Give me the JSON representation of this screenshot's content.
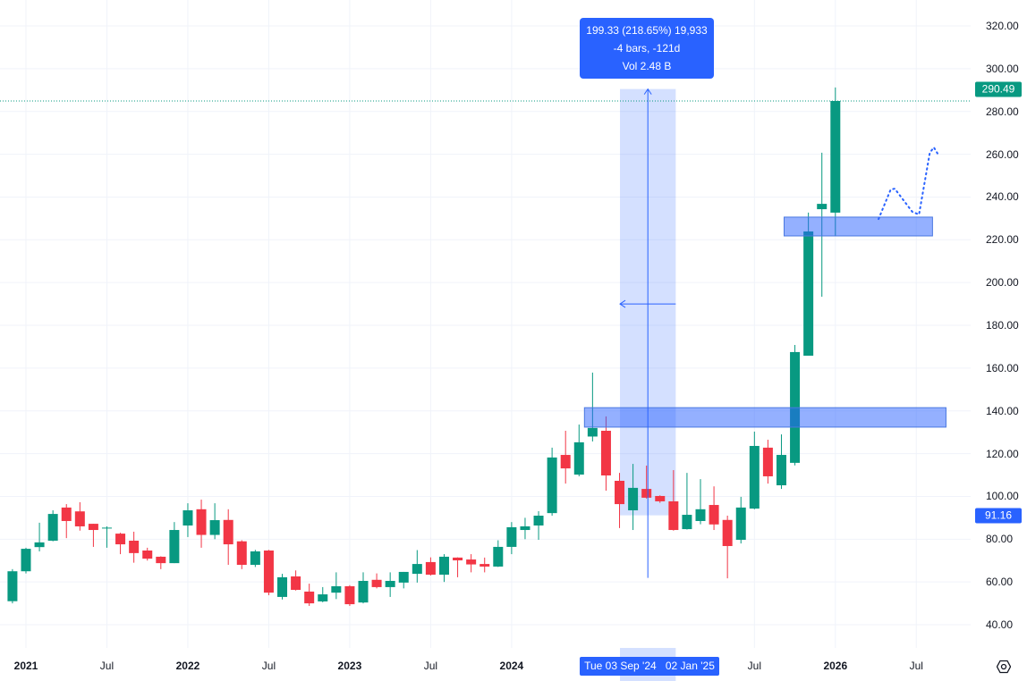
{
  "chart_data": {
    "type": "candlestick",
    "interval": "monthly",
    "first_period": "2020-12",
    "ohlc": [
      [
        51,
        66,
        50,
        65
      ],
      [
        65,
        76,
        64,
        75.5
      ],
      [
        76.3,
        87.7,
        74.3,
        78.5
      ],
      [
        79.3,
        93.5,
        79,
        91.8
      ],
      [
        94.8,
        96.4,
        80.5,
        88.5
      ],
      [
        93,
        97.3,
        84,
        86
      ],
      [
        87.2,
        87.2,
        76.4,
        84.3
      ],
      [
        85.2,
        86,
        76,
        85.4
      ],
      [
        82.6,
        83,
        73,
        77.6
      ],
      [
        79.3,
        83.5,
        69,
        73.5
      ],
      [
        74.7,
        76,
        70,
        70.9
      ],
      [
        71.8,
        72,
        66,
        68.8
      ],
      [
        68.8,
        88,
        68.8,
        84.3
      ],
      [
        86.4,
        96.8,
        81,
        93.5
      ],
      [
        94,
        98.5,
        76,
        82
      ],
      [
        82,
        96.8,
        80,
        88.9
      ],
      [
        89,
        94,
        68,
        77.6
      ],
      [
        79,
        79.5,
        66,
        68
      ],
      [
        68,
        75,
        67,
        74.3
      ],
      [
        74.7,
        75,
        53.8,
        55
      ],
      [
        53,
        63.8,
        51.8,
        62.2
      ],
      [
        62.6,
        65.4,
        56,
        56.3
      ],
      [
        55.5,
        59.2,
        48.8,
        50
      ],
      [
        50.9,
        57.6,
        50.5,
        54.2
      ],
      [
        55,
        64.5,
        52,
        58
      ],
      [
        58,
        58.5,
        48.8,
        49.6
      ],
      [
        50.4,
        64.5,
        50,
        60.5
      ],
      [
        61,
        64,
        57,
        57.6
      ],
      [
        57.6,
        64.5,
        53,
        60.5
      ],
      [
        59.7,
        64.7,
        57,
        64.7
      ],
      [
        63.8,
        74.9,
        59.7,
        68.4
      ],
      [
        69.3,
        71.5,
        63,
        63.4
      ],
      [
        63.4,
        73,
        60,
        71.8
      ],
      [
        71.4,
        71.5,
        62.2,
        70.1
      ],
      [
        70.5,
        73,
        64.5,
        68.2
      ],
      [
        68.4,
        71.4,
        64.5,
        67.2
      ],
      [
        67.2,
        79.5,
        67,
        76.4
      ],
      [
        76.4,
        88,
        73,
        85.6
      ],
      [
        84.3,
        90,
        80,
        86
      ],
      [
        86.4,
        93.1,
        79.7,
        91
      ],
      [
        92.2,
        122.8,
        91,
        118.2
      ],
      [
        119.4,
        130.7,
        106,
        113.1
      ],
      [
        110.2,
        133.6,
        109.4,
        125.3
      ],
      [
        128,
        157.9,
        125.7,
        132
      ],
      [
        130.7,
        137.4,
        102.7,
        109.8
      ],
      [
        107.3,
        111,
        85.2,
        96.4
      ],
      [
        93.5,
        115.2,
        84.3,
        104
      ],
      [
        103.5,
        114.4,
        99,
        99.4
      ],
      [
        100.2,
        100.5,
        97,
        97.7
      ],
      [
        97.7,
        112.3,
        84,
        84.3
      ],
      [
        84.7,
        111,
        84.5,
        91.4
      ],
      [
        88.5,
        108.1,
        87,
        94
      ],
      [
        96,
        104.7,
        84.3,
        86.9
      ],
      [
        89,
        91,
        61.7,
        76.8
      ],
      [
        79.7,
        99.8,
        78,
        94.8
      ],
      [
        94.3,
        130.3,
        94,
        123.6
      ],
      [
        122.8,
        126.5,
        106,
        109.4
      ],
      [
        105.2,
        129,
        103.5,
        119.4
      ],
      [
        115.7,
        170.8,
        114.5,
        167.5
      ],
      [
        165.8,
        232.7,
        165.8,
        223.9
      ],
      [
        234.3,
        260.7,
        193.4,
        236.8
      ],
      [
        232.7,
        291.2,
        221.8,
        284.9
      ]
    ],
    "ylim": [
      40,
      320
    ],
    "y_ticks": [
      "320.00",
      "300.00",
      "280.00",
      "260.00",
      "240.00",
      "220.00",
      "200.00",
      "180.00",
      "160.00",
      "140.00",
      "120.00",
      "100.00",
      "80.00",
      "60.00",
      "40.00"
    ],
    "x_ticks": [
      {
        "label": "2021",
        "month": 0,
        "year": true
      },
      {
        "label": "Jul",
        "month": 6,
        "year": false
      },
      {
        "label": "2022",
        "month": 12,
        "year": true
      },
      {
        "label": "Jul",
        "month": 18,
        "year": false
      },
      {
        "label": "2023",
        "month": 24,
        "year": true
      },
      {
        "label": "Jul",
        "month": 30,
        "year": false
      },
      {
        "label": "2024",
        "month": 36,
        "year": true
      },
      {
        "label": "Jul",
        "month": 54,
        "year": false
      },
      {
        "label": "2026",
        "month": 60,
        "year": true
      },
      {
        "label": "Jul",
        "month": 66,
        "year": false
      }
    ],
    "grid": true,
    "zones": [
      {
        "price_top": 141.5,
        "price_bottom": 132.4,
        "from_month": 41.4,
        "to_month": 68.2
      },
      {
        "price_top": 230.6,
        "price_bottom": 221.8,
        "from_month": 56.2,
        "to_month": 67.2
      }
    ],
    "projection_path": [
      [
        63.2,
        229.7
      ],
      [
        64.1,
        243.5
      ],
      [
        64.4,
        243.9
      ],
      [
        65.7,
        233.1
      ],
      [
        66.2,
        231.8
      ],
      [
        67.0,
        260.7
      ],
      [
        67.3,
        263.2
      ],
      [
        67.7,
        259
      ]
    ],
    "measure": {
      "from_price": 91.16,
      "to_price": 290.49,
      "from_month": 44.1,
      "to_month": 48.1,
      "arrow_price": 190
    },
    "last_price": "290.49",
    "last_price_value": 290.49,
    "last_close": 284.9,
    "measure_start_label": "91.16",
    "colors": {
      "up": "#089981",
      "down": "#f23645",
      "accent": "#2962ff",
      "zone": "#8fb0f8",
      "zone_border": "#4a78e0"
    }
  },
  "tooltip": {
    "line1": "199.33 (218.65%) 19,933",
    "line2": "-4 bars, -121d",
    "line3": "Vol 2.48 B"
  },
  "date_range": {
    "start": "Tue 03 Sep '24",
    "end": "02 Jan '25"
  },
  "settings_icon": "gear-icon"
}
